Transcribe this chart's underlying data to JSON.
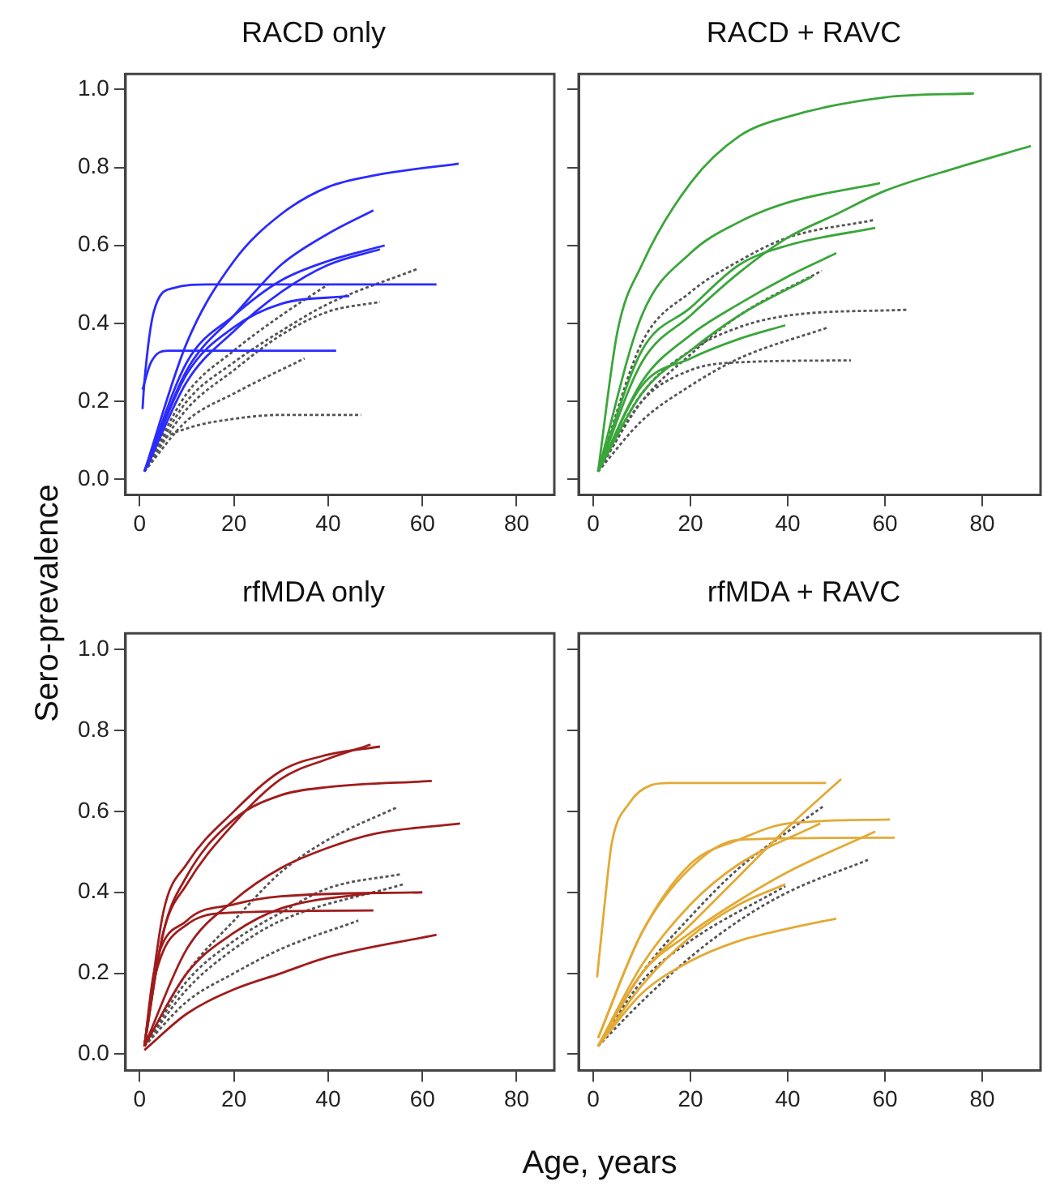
{
  "chart_data": [
    {
      "type": "line",
      "title": "RACD only",
      "ylabel": "Sero-prevalence",
      "xlim": [
        -3,
        88
      ],
      "ylim": [
        -0.04,
        1.04
      ],
      "xticks": [
        0,
        20,
        40,
        60,
        80
      ],
      "yticks": [
        {
          "value": 0,
          "label": "0.0"
        },
        {
          "value": 0.2,
          "label": "0.2"
        },
        {
          "value": 0.4,
          "label": "0.4"
        },
        {
          "value": 0.6,
          "label": "0.6"
        },
        {
          "value": 0.8,
          "label": "0.8"
        },
        {
          "value": 1,
          "label": "1.0"
        }
      ],
      "grid": false,
      "legend": false,
      "marker": "none",
      "line_style": "solid",
      "series": [
        {
          "color": "#2b2bff",
          "x": [
            1,
            10,
            20,
            30,
            40,
            50,
            67.7
          ],
          "values": [
            0.02,
            0.35,
            0.56,
            0.68,
            0.75,
            0.78,
            0.81
          ]
        },
        {
          "color": "#2b2bff",
          "x": [
            1,
            10,
            20,
            30,
            40,
            49.6
          ],
          "values": [
            0.02,
            0.28,
            0.42,
            0.55,
            0.63,
            0.69
          ]
        },
        {
          "color": "#2b2bff",
          "x": [
            1,
            10,
            20,
            30,
            40,
            52
          ],
          "values": [
            0.02,
            0.3,
            0.42,
            0.51,
            0.56,
            0.6
          ]
        },
        {
          "color": "#2b2bff",
          "x": [
            1.5,
            10,
            20,
            30,
            40,
            51
          ],
          "values": [
            0.03,
            0.25,
            0.38,
            0.48,
            0.55,
            0.59
          ]
        },
        {
          "color": "#2b2bff",
          "x": [
            1,
            10,
            20,
            30,
            44.5
          ],
          "values": [
            0.02,
            0.27,
            0.39,
            0.45,
            0.47
          ]
        },
        {
          "color": "#2b2bff",
          "x": [
            0.6,
            1,
            3,
            7,
            15,
            63
          ],
          "values": [
            0.18,
            0.25,
            0.43,
            0.49,
            0.5,
            0.5
          ]
        },
        {
          "color": "#2b2bff",
          "x": [
            0.6,
            2.4,
            6,
            41.7
          ],
          "values": [
            0.23,
            0.3,
            0.33,
            0.33
          ]
        },
        {
          "color": "#555555",
          "line_style": "dotted",
          "x": [
            1,
            10,
            20,
            30,
            40,
            59
          ],
          "values": [
            0.02,
            0.2,
            0.3,
            0.38,
            0.45,
            0.54
          ]
        },
        {
          "color": "#555555",
          "line_style": "dotted",
          "x": [
            1,
            10,
            20,
            30,
            40,
            51
          ],
          "values": [
            0.02,
            0.18,
            0.28,
            0.37,
            0.43,
            0.455
          ]
        },
        {
          "color": "#555555",
          "line_style": "dotted",
          "x": [
            1,
            10,
            20,
            35
          ],
          "values": [
            0.02,
            0.15,
            0.22,
            0.31
          ]
        },
        {
          "color": "#555555",
          "line_style": "dotted",
          "x": [
            1,
            5,
            10,
            20,
            30,
            47
          ],
          "values": [
            0.02,
            0.1,
            0.13,
            0.155,
            0.165,
            0.165
          ]
        },
        {
          "color": "#555555",
          "line_style": "dotted",
          "x": [
            1,
            10,
            20,
            30,
            40
          ],
          "values": [
            0.02,
            0.22,
            0.33,
            0.42,
            0.5
          ]
        }
      ]
    },
    {
      "type": "line",
      "title": "RACD + RAVC",
      "tick_labels": "x",
      "xlim": [
        -3,
        92
      ],
      "ylim": [
        -0.04,
        1.04
      ],
      "xticks": [
        0,
        20,
        40,
        60,
        80
      ],
      "yticks": [
        0,
        0.2,
        0.4,
        0.6,
        0.8,
        1
      ],
      "grid": false,
      "legend": false,
      "marker": "none",
      "line_style": "solid",
      "series": [
        {
          "color": "#3aa63a",
          "x": [
            1,
            5,
            10,
            20,
            30,
            40,
            60,
            78.3
          ],
          "values": [
            0.02,
            0.38,
            0.55,
            0.76,
            0.88,
            0.93,
            0.98,
            0.99
          ]
        },
        {
          "color": "#3aa63a",
          "x": [
            1,
            10,
            20,
            30,
            40,
            59
          ],
          "values": [
            0.02,
            0.42,
            0.58,
            0.66,
            0.71,
            0.76
          ]
        },
        {
          "color": "#3aa63a",
          "x": [
            1,
            10,
            20,
            30,
            40,
            50,
            60,
            75,
            90
          ],
          "values": [
            0.02,
            0.3,
            0.42,
            0.53,
            0.62,
            0.68,
            0.74,
            0.8,
            0.855
          ]
        },
        {
          "color": "#3aa63a",
          "x": [
            1,
            10,
            20,
            30,
            40,
            58
          ],
          "values": [
            0.02,
            0.33,
            0.44,
            0.55,
            0.6,
            0.645
          ]
        },
        {
          "color": "#3aa63a",
          "x": [
            1,
            10,
            20,
            30,
            40,
            50
          ],
          "values": [
            0.02,
            0.25,
            0.37,
            0.45,
            0.52,
            0.58
          ]
        },
        {
          "color": "#3aa63a",
          "x": [
            1,
            10,
            20,
            30,
            39.5
          ],
          "values": [
            0.02,
            0.24,
            0.31,
            0.36,
            0.395
          ]
        },
        {
          "color": "#3aa63a",
          "x": [
            1,
            10,
            20,
            30,
            45
          ],
          "values": [
            0.02,
            0.22,
            0.33,
            0.42,
            0.52
          ]
        },
        {
          "color": "#555555",
          "line_style": "dotted",
          "x": [
            1,
            10,
            20,
            30,
            40,
            57.7
          ],
          "values": [
            0.02,
            0.35,
            0.48,
            0.56,
            0.62,
            0.665
          ]
        },
        {
          "color": "#555555",
          "line_style": "dotted",
          "x": [
            1,
            10,
            20,
            30,
            47
          ],
          "values": [
            0.02,
            0.2,
            0.32,
            0.42,
            0.535
          ]
        },
        {
          "color": "#555555",
          "line_style": "dotted",
          "x": [
            1,
            10,
            20,
            30,
            40,
            64.4
          ],
          "values": [
            0.02,
            0.22,
            0.33,
            0.39,
            0.42,
            0.435
          ]
        },
        {
          "color": "#555555",
          "line_style": "dotted",
          "x": [
            1,
            10,
            20,
            30,
            48.4
          ],
          "values": [
            0.02,
            0.15,
            0.24,
            0.31,
            0.39
          ]
        },
        {
          "color": "#555555",
          "line_style": "dotted",
          "x": [
            1,
            10,
            20,
            30,
            53
          ],
          "values": [
            0.02,
            0.2,
            0.28,
            0.3,
            0.305
          ]
        }
      ]
    },
    {
      "type": "line",
      "title": "rfMDA only",
      "xlabel": "Age, years",
      "xlim": [
        -3,
        88
      ],
      "ylim": [
        -0.04,
        1.04
      ],
      "xticks": [
        0,
        20,
        40,
        60,
        80
      ],
      "yticks": [
        {
          "value": 0,
          "label": "0.0"
        },
        {
          "value": 0.2,
          "label": "0.2"
        },
        {
          "value": 0.4,
          "label": "0.4"
        },
        {
          "value": 0.6,
          "label": "0.6"
        },
        {
          "value": 0.8,
          "label": "0.8"
        },
        {
          "value": 1,
          "label": "1.0"
        }
      ],
      "grid": false,
      "legend": false,
      "marker": "none",
      "line_style": "solid",
      "series": [
        {
          "color": "#a01c1c",
          "x": [
            1,
            5,
            10,
            20,
            30,
            40,
            51
          ],
          "values": [
            0.02,
            0.35,
            0.47,
            0.6,
            0.7,
            0.74,
            0.76
          ]
        },
        {
          "color": "#a01c1c",
          "x": [
            1,
            5,
            10,
            20,
            30,
            40,
            49
          ],
          "values": [
            0.02,
            0.3,
            0.42,
            0.57,
            0.68,
            0.73,
            0.765
          ]
        },
        {
          "color": "#a01c1c",
          "x": [
            1,
            5,
            10,
            20,
            30,
            40,
            62
          ],
          "values": [
            0.02,
            0.3,
            0.44,
            0.58,
            0.64,
            0.66,
            0.675
          ]
        },
        {
          "color": "#a01c1c",
          "x": [
            1,
            10,
            20,
            30,
            40,
            50,
            68
          ],
          "values": [
            0.02,
            0.26,
            0.38,
            0.46,
            0.51,
            0.545,
            0.57
          ]
        },
        {
          "color": "#a01c1c",
          "x": [
            1,
            3,
            10,
            20,
            30,
            60
          ],
          "values": [
            0.02,
            0.2,
            0.33,
            0.37,
            0.39,
            0.4
          ]
        },
        {
          "color": "#a01c1c",
          "x": [
            1,
            3,
            10,
            20,
            49.6
          ],
          "values": [
            0.02,
            0.18,
            0.32,
            0.35,
            0.355
          ]
        },
        {
          "color": "#a01c1c",
          "x": [
            1,
            10,
            20,
            30,
            50
          ],
          "values": [
            0.02,
            0.2,
            0.3,
            0.36,
            0.4
          ]
        },
        {
          "color": "#a01c1c",
          "x": [
            1,
            10,
            20,
            30,
            40,
            63
          ],
          "values": [
            0.01,
            0.1,
            0.16,
            0.2,
            0.24,
            0.295
          ]
        },
        {
          "color": "#555555",
          "line_style": "dotted",
          "x": [
            1,
            10,
            20,
            30,
            40,
            54.6
          ],
          "values": [
            0.02,
            0.2,
            0.33,
            0.45,
            0.53,
            0.61
          ]
        },
        {
          "color": "#555555",
          "line_style": "dotted",
          "x": [
            1,
            10,
            20,
            30,
            40,
            55.5
          ],
          "values": [
            0.02,
            0.18,
            0.28,
            0.35,
            0.41,
            0.445
          ]
        },
        {
          "color": "#555555",
          "line_style": "dotted",
          "x": [
            1,
            10,
            20,
            30,
            56
          ],
          "values": [
            0.02,
            0.16,
            0.26,
            0.33,
            0.42
          ]
        },
        {
          "color": "#555555",
          "line_style": "dotted",
          "x": [
            1,
            10,
            20,
            30,
            46.4
          ],
          "values": [
            0.02,
            0.13,
            0.2,
            0.26,
            0.33
          ]
        }
      ]
    },
    {
      "type": "line",
      "title": "rfMDA + RAVC",
      "tick_labels": "x",
      "xlim": [
        -3,
        92
      ],
      "ylim": [
        -0.04,
        1.04
      ],
      "xticks": [
        0,
        20,
        40,
        60,
        80
      ],
      "yticks": [
        0,
        0.2,
        0.4,
        0.6,
        0.8,
        1
      ],
      "grid": false,
      "legend": false,
      "marker": "none",
      "line_style": "solid",
      "series": [
        {
          "color": "#e2aa35",
          "x": [
            0.8,
            2.6,
            3.8,
            7.4,
            12,
            15.7,
            47.9
          ],
          "values": [
            0.19,
            0.4,
            0.52,
            0.62,
            0.665,
            0.67,
            0.67
          ]
        },
        {
          "color": "#e2aa35",
          "x": [
            1,
            10,
            20,
            30,
            40,
            51
          ],
          "values": [
            0.02,
            0.2,
            0.32,
            0.44,
            0.56,
            0.68
          ]
        },
        {
          "color": "#e2aa35",
          "x": [
            1,
            10,
            20,
            30,
            40,
            61
          ],
          "values": [
            0.04,
            0.3,
            0.47,
            0.53,
            0.57,
            0.58
          ]
        },
        {
          "color": "#e2aa35",
          "x": [
            1,
            10,
            20,
            30,
            62
          ],
          "values": [
            0.04,
            0.3,
            0.46,
            0.53,
            0.535
          ]
        },
        {
          "color": "#e2aa35",
          "x": [
            1,
            10,
            20,
            30,
            40,
            58
          ],
          "values": [
            0.02,
            0.2,
            0.3,
            0.38,
            0.45,
            0.55
          ]
        },
        {
          "color": "#e2aa35",
          "x": [
            1,
            10,
            20,
            30,
            40,
            50
          ],
          "values": [
            0.02,
            0.15,
            0.23,
            0.28,
            0.31,
            0.335
          ]
        },
        {
          "color": "#e2aa35",
          "x": [
            1,
            10,
            20,
            30,
            39.5
          ],
          "values": [
            0.02,
            0.17,
            0.29,
            0.37,
            0.42
          ]
        },
        {
          "color": "#e2aa35",
          "x": [
            1,
            10,
            20,
            30,
            46.7
          ],
          "values": [
            0.02,
            0.22,
            0.37,
            0.47,
            0.57
          ]
        },
        {
          "color": "#555555",
          "line_style": "dotted",
          "x": [
            1,
            10,
            20,
            30,
            40,
            47.6
          ],
          "values": [
            0.02,
            0.2,
            0.34,
            0.46,
            0.55,
            0.615
          ]
        },
        {
          "color": "#555555",
          "line_style": "dotted",
          "x": [
            1,
            10,
            20,
            30,
            40,
            56.5
          ],
          "values": [
            0.02,
            0.13,
            0.24,
            0.33,
            0.4,
            0.48
          ]
        },
        {
          "color": "#555555",
          "line_style": "dotted",
          "x": [
            1,
            10,
            20,
            39.5
          ],
          "values": [
            0.02,
            0.18,
            0.28,
            0.415
          ]
        }
      ]
    }
  ]
}
